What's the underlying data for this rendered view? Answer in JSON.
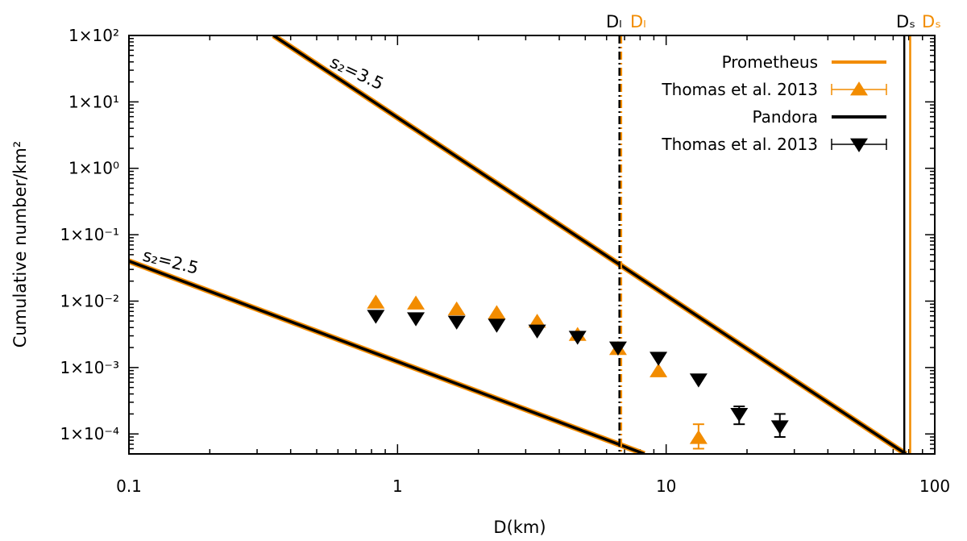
{
  "chart_data": {
    "type": "scatter",
    "xscale": "log",
    "yscale": "log",
    "xlim": [
      0.1,
      100
    ],
    "ylim": [
      5e-05,
      100
    ],
    "xlabel": "D(km)",
    "ylabel": "Cumulative number/km²",
    "x_ticks": [
      {
        "value": 0.1,
        "label": "0.1"
      },
      {
        "value": 1,
        "label": "1"
      },
      {
        "value": 10,
        "label": "10"
      },
      {
        "value": 100,
        "label": "100"
      }
    ],
    "y_ticks": [
      {
        "value": 100,
        "label": "1×10²"
      },
      {
        "value": 10,
        "label": "1×10¹"
      },
      {
        "value": 1,
        "label": "1×10⁰"
      },
      {
        "value": 0.1,
        "label": "1×10⁻¹"
      },
      {
        "value": 0.01,
        "label": "1×10⁻²"
      },
      {
        "value": 0.001,
        "label": "1×10⁻³"
      },
      {
        "value": 0.0001,
        "label": "1×10⁻⁴"
      }
    ],
    "colors": {
      "prometheus": "#f28c00",
      "pandora": "#000000"
    },
    "lines": [
      {
        "name": "Prometheus",
        "label": "s₂=3.5",
        "color": "#f28c00",
        "width": 7,
        "points": [
          [
            0.345,
            100
          ],
          [
            78,
            5e-05
          ]
        ]
      },
      {
        "name": "Pandora",
        "label": "s₂=3.5",
        "color": "#000000",
        "width": 3.5,
        "points": [
          [
            0.345,
            100
          ],
          [
            78,
            5e-05
          ]
        ]
      },
      {
        "name": "Prometheus",
        "label": "s₂=2.5",
        "color": "#f28c00",
        "width": 7,
        "points": [
          [
            0.1,
            0.04
          ],
          [
            8.3,
            5e-05
          ]
        ]
      },
      {
        "name": "Pandora",
        "label": "s₂=2.5",
        "color": "#000000",
        "width": 3.5,
        "points": [
          [
            0.1,
            0.04
          ],
          [
            8.3,
            5e-05
          ]
        ]
      }
    ],
    "vlines": [
      {
        "name": "Prometheus D_l",
        "x": 6.8,
        "color": "#f28c00",
        "style": "dash-dot"
      },
      {
        "name": "Pandora D_l",
        "x": 6.7,
        "color": "#000000",
        "style": "dash-dot"
      },
      {
        "name": "Pandora D_s",
        "x": 77,
        "color": "#000000",
        "style": "solid"
      },
      {
        "name": "Prometheus D_s",
        "x": 81,
        "color": "#f28c00",
        "style": "solid"
      }
    ],
    "series": [
      {
        "name": "Thomas et al. 2013",
        "body": "Prometheus",
        "marker": "triangle-up",
        "color": "#f28c00",
        "points": [
          {
            "x": 0.83,
            "y": 0.0095
          },
          {
            "x": 1.17,
            "y": 0.0092
          },
          {
            "x": 1.66,
            "y": 0.0075
          },
          {
            "x": 2.34,
            "y": 0.0066
          },
          {
            "x": 3.31,
            "y": 0.0049
          },
          {
            "x": 4.68,
            "y": 0.0031
          },
          {
            "x": 6.62,
            "y": 0.0019
          },
          {
            "x": 9.36,
            "y": 0.00088
          },
          {
            "x": 13.2,
            "y": 8.7e-05,
            "err_lo": 6e-05,
            "err_hi": 0.00014
          }
        ]
      },
      {
        "name": "Thomas et al. 2013",
        "body": "Pandora",
        "marker": "triangle-down",
        "color": "#000000",
        "points": [
          {
            "x": 0.83,
            "y": 0.006
          },
          {
            "x": 1.17,
            "y": 0.0055
          },
          {
            "x": 1.66,
            "y": 0.0049
          },
          {
            "x": 2.34,
            "y": 0.0044
          },
          {
            "x": 3.31,
            "y": 0.0036
          },
          {
            "x": 4.68,
            "y": 0.0029
          },
          {
            "x": 6.62,
            "y": 0.002
          },
          {
            "x": 9.36,
            "y": 0.0014
          },
          {
            "x": 13.2,
            "y": 0.00066
          },
          {
            "x": 18.7,
            "y": 0.0002,
            "err_lo": 0.00014,
            "err_hi": 0.00026
          },
          {
            "x": 26.5,
            "y": 0.00013,
            "err_lo": 9e-05,
            "err_hi": 0.0002
          }
        ]
      }
    ],
    "legend": {
      "placement": "top-right",
      "entries": [
        {
          "label": "Prometheus",
          "type": "line",
          "color": "#f28c00"
        },
        {
          "label": "Thomas et al. 2013",
          "type": "triangle-up",
          "color": "#f28c00"
        },
        {
          "label": "Pandora",
          "type": "line",
          "color": "#000000"
        },
        {
          "label": "Thomas et al. 2013",
          "type": "triangle-down",
          "color": "#000000"
        }
      ]
    },
    "annotations": {
      "slope_steep": "s₂=3.5",
      "slope_shallow": "s₂=2.5",
      "dl_pandora": "Dₗ",
      "dl_prometheus": "Dₗ",
      "ds_pandora": "Dₛ",
      "ds_prometheus": "Dₛ"
    }
  }
}
